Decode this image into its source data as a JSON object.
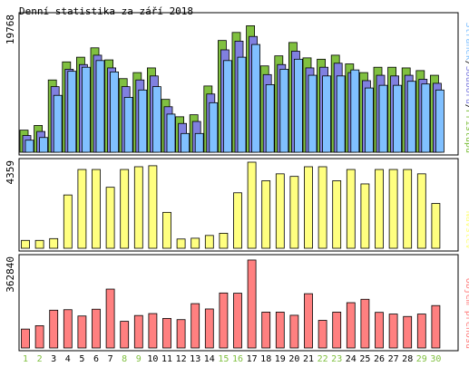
{
  "colors": {
    "hits": "#80c040",
    "files": "#8080e0",
    "pages": "#80c0ff",
    "visits": "#ffff80",
    "kbytes": "#ff8080",
    "frame": "#000000",
    "day_weekday": "#000000",
    "day_weekend": "#80c040"
  },
  "chart_data": [
    {
      "type": "bar",
      "title": "Denní statistika za září 2018",
      "ylabel_max": "19768",
      "legend": [
        {
          "text": "Stránek",
          "color": "#80c0ff"
        },
        {
          "text": "/",
          "color": "#000000"
        },
        {
          "text": "Souborů",
          "color": "#8080e0"
        },
        {
          "text": "/",
          "color": "#000000"
        },
        {
          "text": "Přístupů",
          "color": "#80c040"
        }
      ],
      "ylim": [
        0,
        19768
      ],
      "categories": [
        "1",
        "2",
        "3",
        "4",
        "5",
        "6",
        "7",
        "8",
        "9",
        "10",
        "11",
        "12",
        "13",
        "14",
        "15",
        "16",
        "17",
        "18",
        "19",
        "20",
        "21",
        "22",
        "23",
        "24",
        "25",
        "26",
        "27",
        "28",
        "29",
        "30"
      ],
      "weekend_days": [
        "1",
        "2",
        "8",
        "9",
        "15",
        "16",
        "22",
        "23",
        "29",
        "30"
      ],
      "series": [
        {
          "name": "Přístupů",
          "values": [
            3300,
            4000,
            10800,
            13500,
            14200,
            15600,
            13800,
            11000,
            11900,
            12600,
            7900,
            5300,
            5600,
            9900,
            16700,
            17900,
            18900,
            12900,
            14400,
            16400,
            14100,
            13900,
            14500,
            13200,
            11900,
            12700,
            12700,
            12600,
            12200,
            11500
          ]
        },
        {
          "name": "Souborů",
          "values": [
            2500,
            3100,
            9800,
            12400,
            13100,
            14500,
            12600,
            9800,
            10800,
            11400,
            6800,
            4300,
            4600,
            8700,
            15300,
            16600,
            17300,
            11600,
            13100,
            15100,
            12600,
            12700,
            13300,
            11900,
            10700,
            11500,
            11400,
            11500,
            10900,
            10300
          ]
        },
        {
          "name": "Stránek",
          "values": [
            1800,
            2200,
            8500,
            12100,
            12700,
            13700,
            12000,
            8200,
            9300,
            9800,
            5700,
            2800,
            2800,
            7400,
            13700,
            14200,
            16100,
            10100,
            12400,
            13900,
            11500,
            11400,
            11400,
            12300,
            9600,
            10000,
            10000,
            10600,
            10200,
            9300
          ]
        }
      ]
    },
    {
      "type": "bar",
      "ylabel_max": "4359",
      "legend": [
        {
          "text": "Návštěv",
          "color": "#ffff80"
        }
      ],
      "ylim": [
        0,
        4359
      ],
      "categories": [
        "1",
        "2",
        "3",
        "4",
        "5",
        "6",
        "7",
        "8",
        "9",
        "10",
        "11",
        "12",
        "13",
        "14",
        "15",
        "16",
        "17",
        "18",
        "19",
        "20",
        "21",
        "22",
        "23",
        "24",
        "25",
        "26",
        "27",
        "28",
        "29",
        "30"
      ],
      "series": [
        {
          "name": "Návštěv",
          "values": [
            400,
            400,
            490,
            2700,
            3990,
            3990,
            3090,
            3990,
            4130,
            4180,
            1820,
            470,
            510,
            650,
            760,
            2810,
            4360,
            3420,
            3770,
            3640,
            4130,
            4130,
            3420,
            3990,
            3260,
            3990,
            3990,
            3990,
            3770,
            2270
          ]
        }
      ]
    },
    {
      "type": "bar",
      "ylabel_max": "362840",
      "legend": [
        {
          "text": "Objem přenosu",
          "color": "#ff8080"
        }
      ],
      "ylim": [
        0,
        362840
      ],
      "categories": [
        "1",
        "2",
        "3",
        "4",
        "5",
        "6",
        "7",
        "8",
        "9",
        "10",
        "11",
        "12",
        "13",
        "14",
        "15",
        "16",
        "17",
        "18",
        "19",
        "20",
        "21",
        "22",
        "23",
        "24",
        "25",
        "26",
        "27",
        "28",
        "29",
        "30"
      ],
      "series": [
        {
          "name": "Objem přenosu",
          "values": [
            78000,
            92000,
            156000,
            158000,
            132000,
            160000,
            243000,
            110000,
            134000,
            142000,
            122000,
            117000,
            183000,
            161000,
            227000,
            226000,
            363000,
            148000,
            148000,
            135000,
            224000,
            114000,
            148000,
            187000,
            201000,
            147000,
            140000,
            130000,
            140000,
            175000
          ]
        }
      ]
    }
  ]
}
